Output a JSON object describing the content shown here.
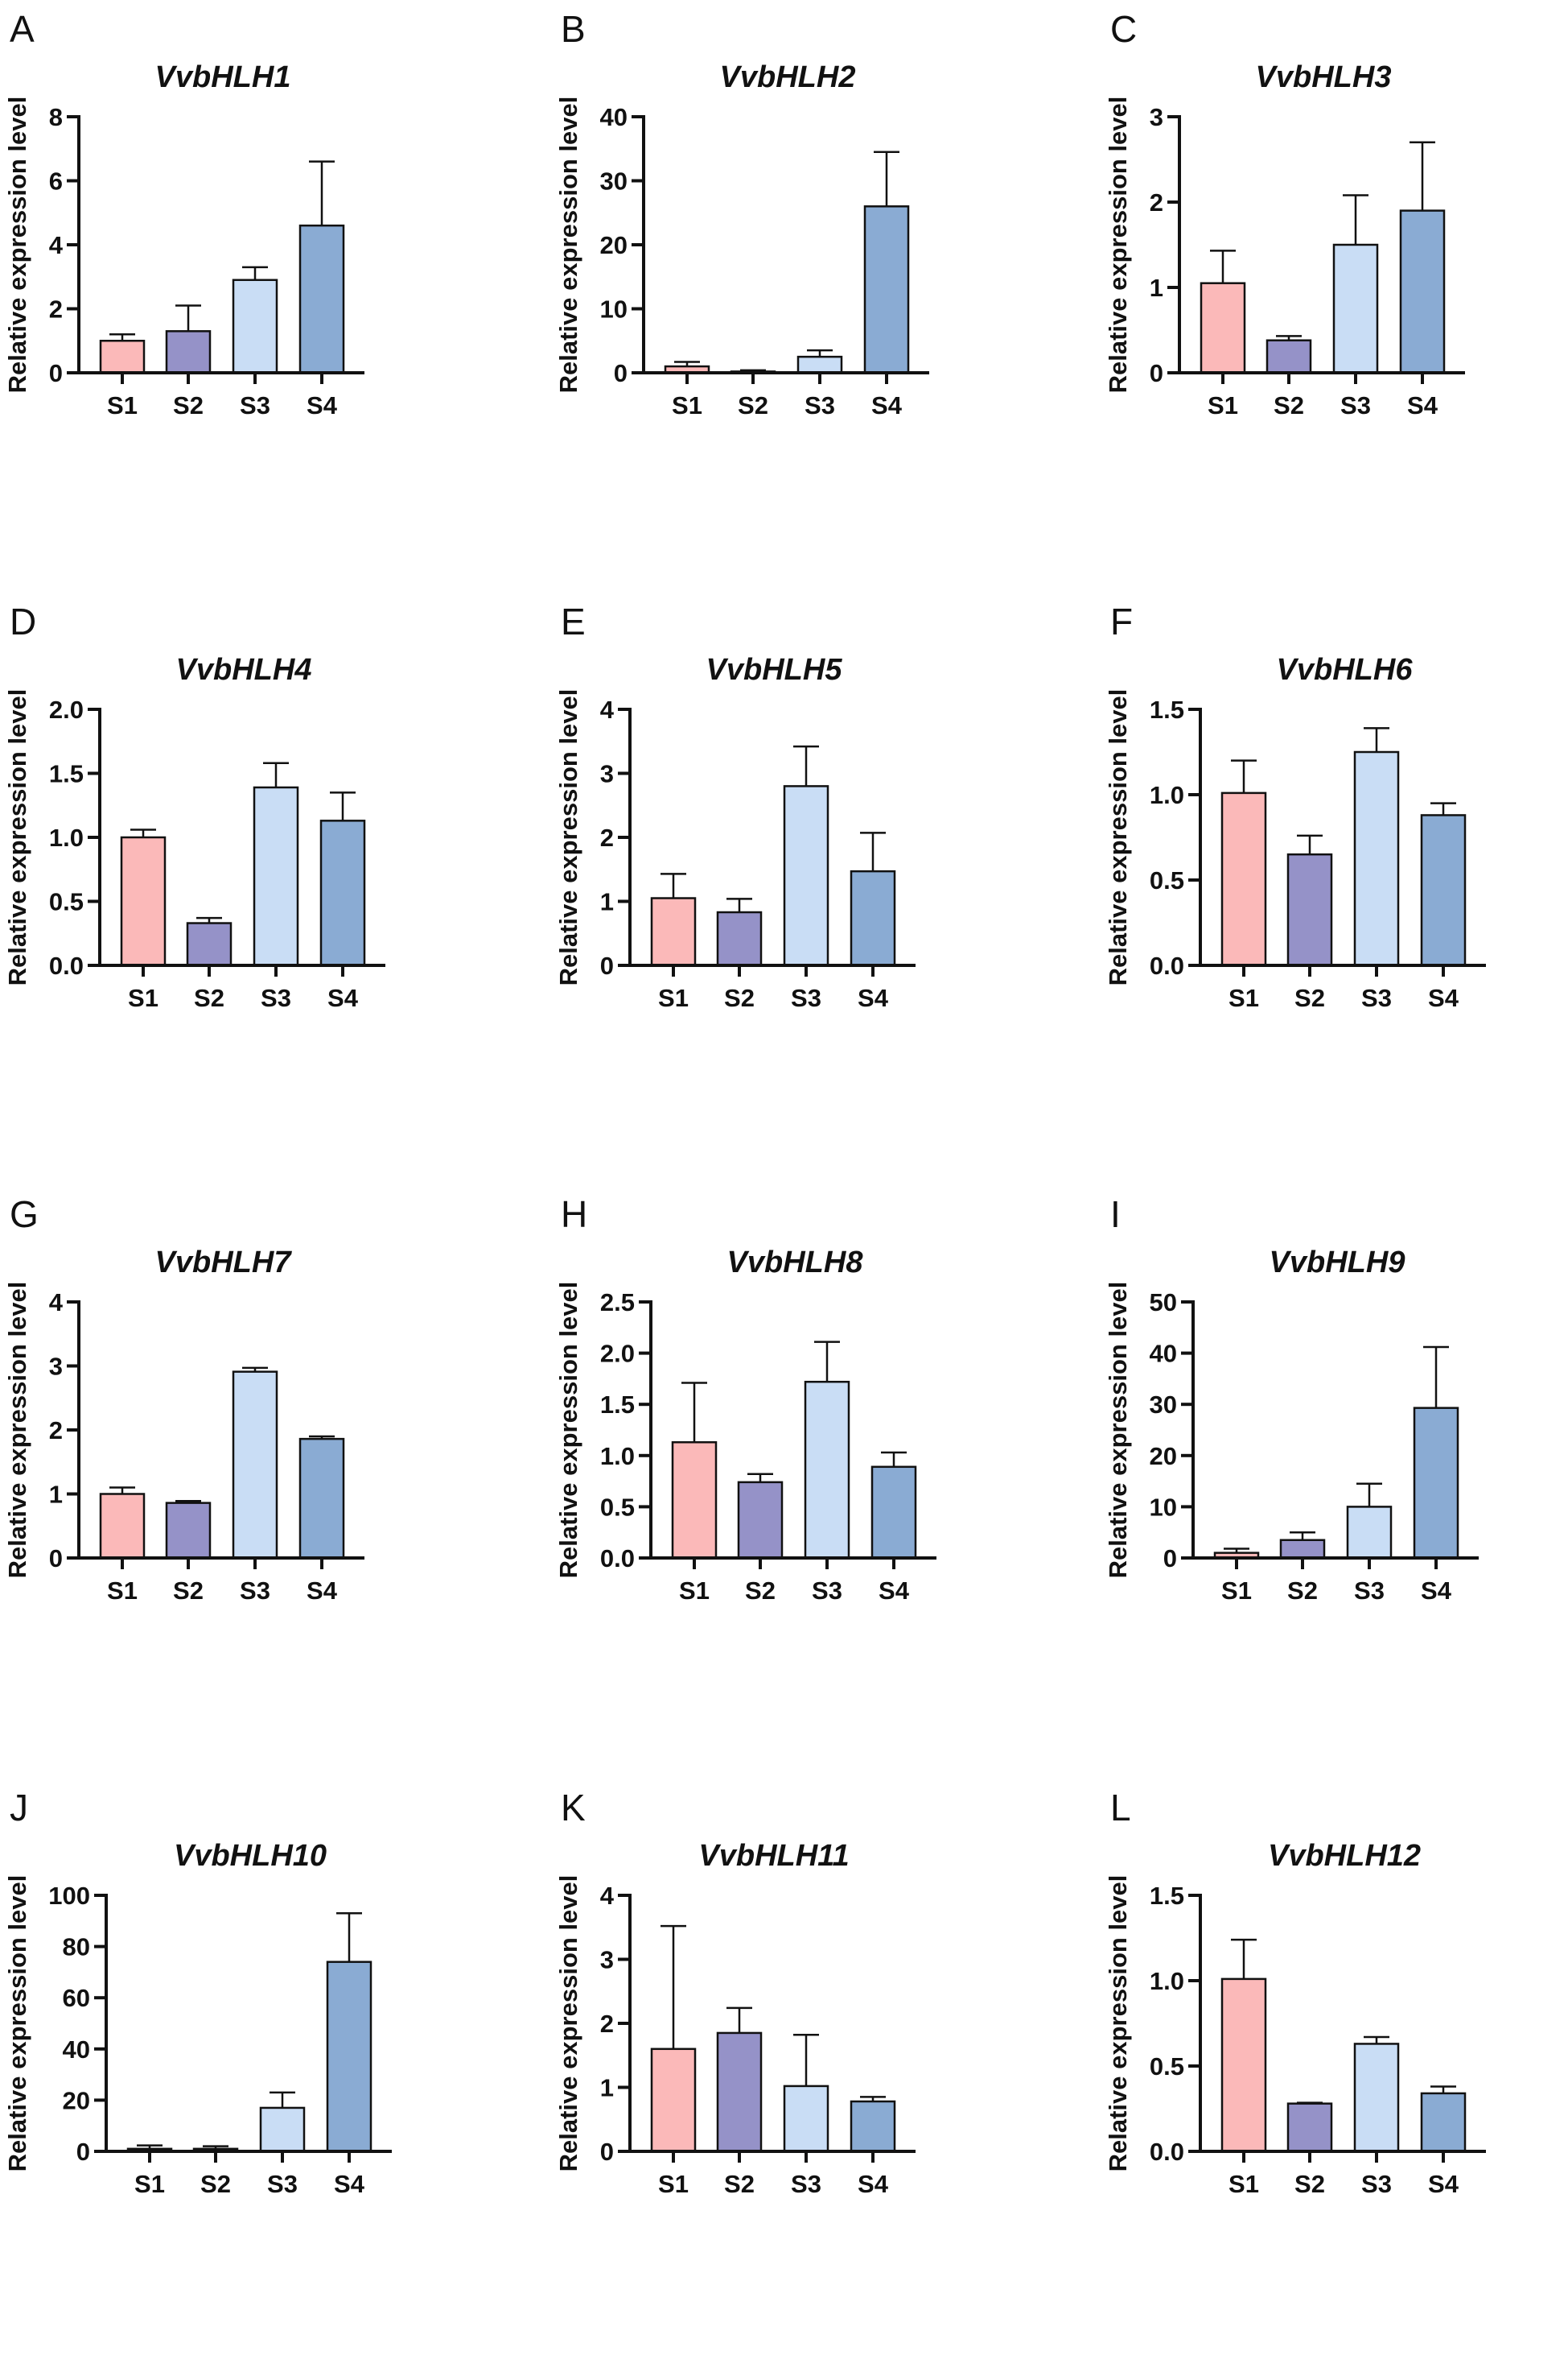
{
  "colors": {
    "S1": "#FBB9B9",
    "S2": "#9592C8",
    "S3": "#C9DDF5",
    "S4": "#8AABD3"
  },
  "chart_data": [
    {
      "panel": "A",
      "type": "bar",
      "title": "VvbHLH1",
      "ylabel": "Relative expression level",
      "categories": [
        "S1",
        "S2",
        "S3",
        "S4"
      ],
      "ylim": [
        0,
        8
      ],
      "yticks": [
        "0",
        "2",
        "4",
        "6",
        "8"
      ],
      "values": [
        1.0,
        1.3,
        2.9,
        4.6
      ],
      "error_upper": [
        1.2,
        2.1,
        3.3,
        6.6
      ]
    },
    {
      "panel": "B",
      "type": "bar",
      "title": "VvbHLH2",
      "ylabel": "Relative expression level",
      "categories": [
        "S1",
        "S2",
        "S3",
        "S4"
      ],
      "ylim": [
        0,
        40
      ],
      "yticks": [
        "0",
        "10",
        "20",
        "30",
        "40"
      ],
      "values": [
        1.0,
        0.2,
        2.5,
        26.0
      ],
      "error_upper": [
        1.7,
        0.4,
        3.5,
        34.5
      ]
    },
    {
      "panel": "C",
      "type": "bar",
      "title": "VvbHLH3",
      "ylabel": "Relative expression level",
      "categories": [
        "S1",
        "S2",
        "S3",
        "S4"
      ],
      "ylim": [
        0,
        3
      ],
      "yticks": [
        "0",
        "1",
        "2",
        "3"
      ],
      "values": [
        1.05,
        0.38,
        1.5,
        1.9
      ],
      "error_upper": [
        1.43,
        0.43,
        2.08,
        2.7
      ]
    },
    {
      "panel": "D",
      "type": "bar",
      "title": "VvbHLH4",
      "ylabel": "Relative expression level",
      "categories": [
        "S1",
        "S2",
        "S3",
        "S4"
      ],
      "ylim": [
        0,
        2
      ],
      "yticks": [
        "0.0",
        "0.5",
        "1.0",
        "1.5",
        "2.0"
      ],
      "values": [
        1.0,
        0.33,
        1.39,
        1.13
      ],
      "error_upper": [
        1.06,
        0.37,
        1.58,
        1.35
      ]
    },
    {
      "panel": "E",
      "type": "bar",
      "title": "VvbHLH5",
      "ylabel": "Relative expression level",
      "categories": [
        "S1",
        "S2",
        "S3",
        "S4"
      ],
      "ylim": [
        0,
        4
      ],
      "yticks": [
        "0",
        "1",
        "2",
        "3",
        "4"
      ],
      "values": [
        1.05,
        0.83,
        2.8,
        1.47
      ],
      "error_upper": [
        1.43,
        1.04,
        3.42,
        2.07
      ]
    },
    {
      "panel": "F",
      "type": "bar",
      "title": "VvbHLH6",
      "ylabel": "Relative expression level",
      "categories": [
        "S1",
        "S2",
        "S3",
        "S4"
      ],
      "ylim": [
        0,
        1.5
      ],
      "yticks": [
        "0.0",
        "0.5",
        "1.0",
        "1.5"
      ],
      "values": [
        1.01,
        0.65,
        1.25,
        0.88
      ],
      "error_upper": [
        1.2,
        0.76,
        1.39,
        0.95
      ]
    },
    {
      "panel": "G",
      "type": "bar",
      "title": "VvbHLH7",
      "ylabel": "Relative expression level",
      "categories": [
        "S1",
        "S2",
        "S3",
        "S4"
      ],
      "ylim": [
        0,
        4
      ],
      "yticks": [
        "0",
        "1",
        "2",
        "3",
        "4"
      ],
      "values": [
        1.0,
        0.86,
        2.91,
        1.86
      ],
      "error_upper": [
        1.1,
        0.89,
        2.97,
        1.9
      ]
    },
    {
      "panel": "H",
      "type": "bar",
      "title": "VvbHLH8",
      "ylabel": "Relative expression level",
      "categories": [
        "S1",
        "S2",
        "S3",
        "S4"
      ],
      "ylim": [
        0,
        2.5
      ],
      "yticks": [
        "0.0",
        "0.5",
        "1.0",
        "1.5",
        "2.0",
        "2.5"
      ],
      "values": [
        1.13,
        0.74,
        1.72,
        0.89
      ],
      "error_upper": [
        1.71,
        0.82,
        2.11,
        1.03
      ]
    },
    {
      "panel": "I",
      "type": "bar",
      "title": "VvbHLH9",
      "ylabel": "Relative expression level",
      "categories": [
        "S1",
        "S2",
        "S3",
        "S4"
      ],
      "ylim": [
        0,
        50
      ],
      "yticks": [
        "0",
        "10",
        "20",
        "30",
        "40",
        "50"
      ],
      "values": [
        1.0,
        3.5,
        10.0,
        29.3
      ],
      "error_upper": [
        1.8,
        5.0,
        14.5,
        41.2
      ]
    },
    {
      "panel": "J",
      "type": "bar",
      "title": "VvbHLH10",
      "ylabel": "Relative expression level",
      "categories": [
        "S1",
        "S2",
        "S3",
        "S4"
      ],
      "ylim": [
        0,
        100
      ],
      "yticks": [
        "0",
        "20",
        "40",
        "60",
        "80",
        "100"
      ],
      "values": [
        1.0,
        1.0,
        17.0,
        74.0
      ],
      "error_upper": [
        2.3,
        2.0,
        23.0,
        93.0
      ]
    },
    {
      "panel": "K",
      "type": "bar",
      "title": "VvbHLH11",
      "ylabel": "Relative expression level",
      "categories": [
        "S1",
        "S2",
        "S3",
        "S4"
      ],
      "ylim": [
        0,
        4
      ],
      "yticks": [
        "0",
        "1",
        "2",
        "3",
        "4"
      ],
      "values": [
        1.6,
        1.85,
        1.02,
        0.78
      ],
      "error_upper": [
        3.52,
        2.24,
        1.82,
        0.85
      ]
    },
    {
      "panel": "L",
      "type": "bar",
      "title": "VvbHLH12",
      "ylabel": "Relative expression level",
      "categories": [
        "S1",
        "S2",
        "S3",
        "S4"
      ],
      "ylim": [
        0,
        1.5
      ],
      "yticks": [
        "0.0",
        "0.5",
        "1.0",
        "1.5"
      ],
      "values": [
        1.01,
        0.28,
        0.63,
        0.34
      ],
      "error_upper": [
        1.24,
        0.285,
        0.67,
        0.38
      ]
    }
  ]
}
